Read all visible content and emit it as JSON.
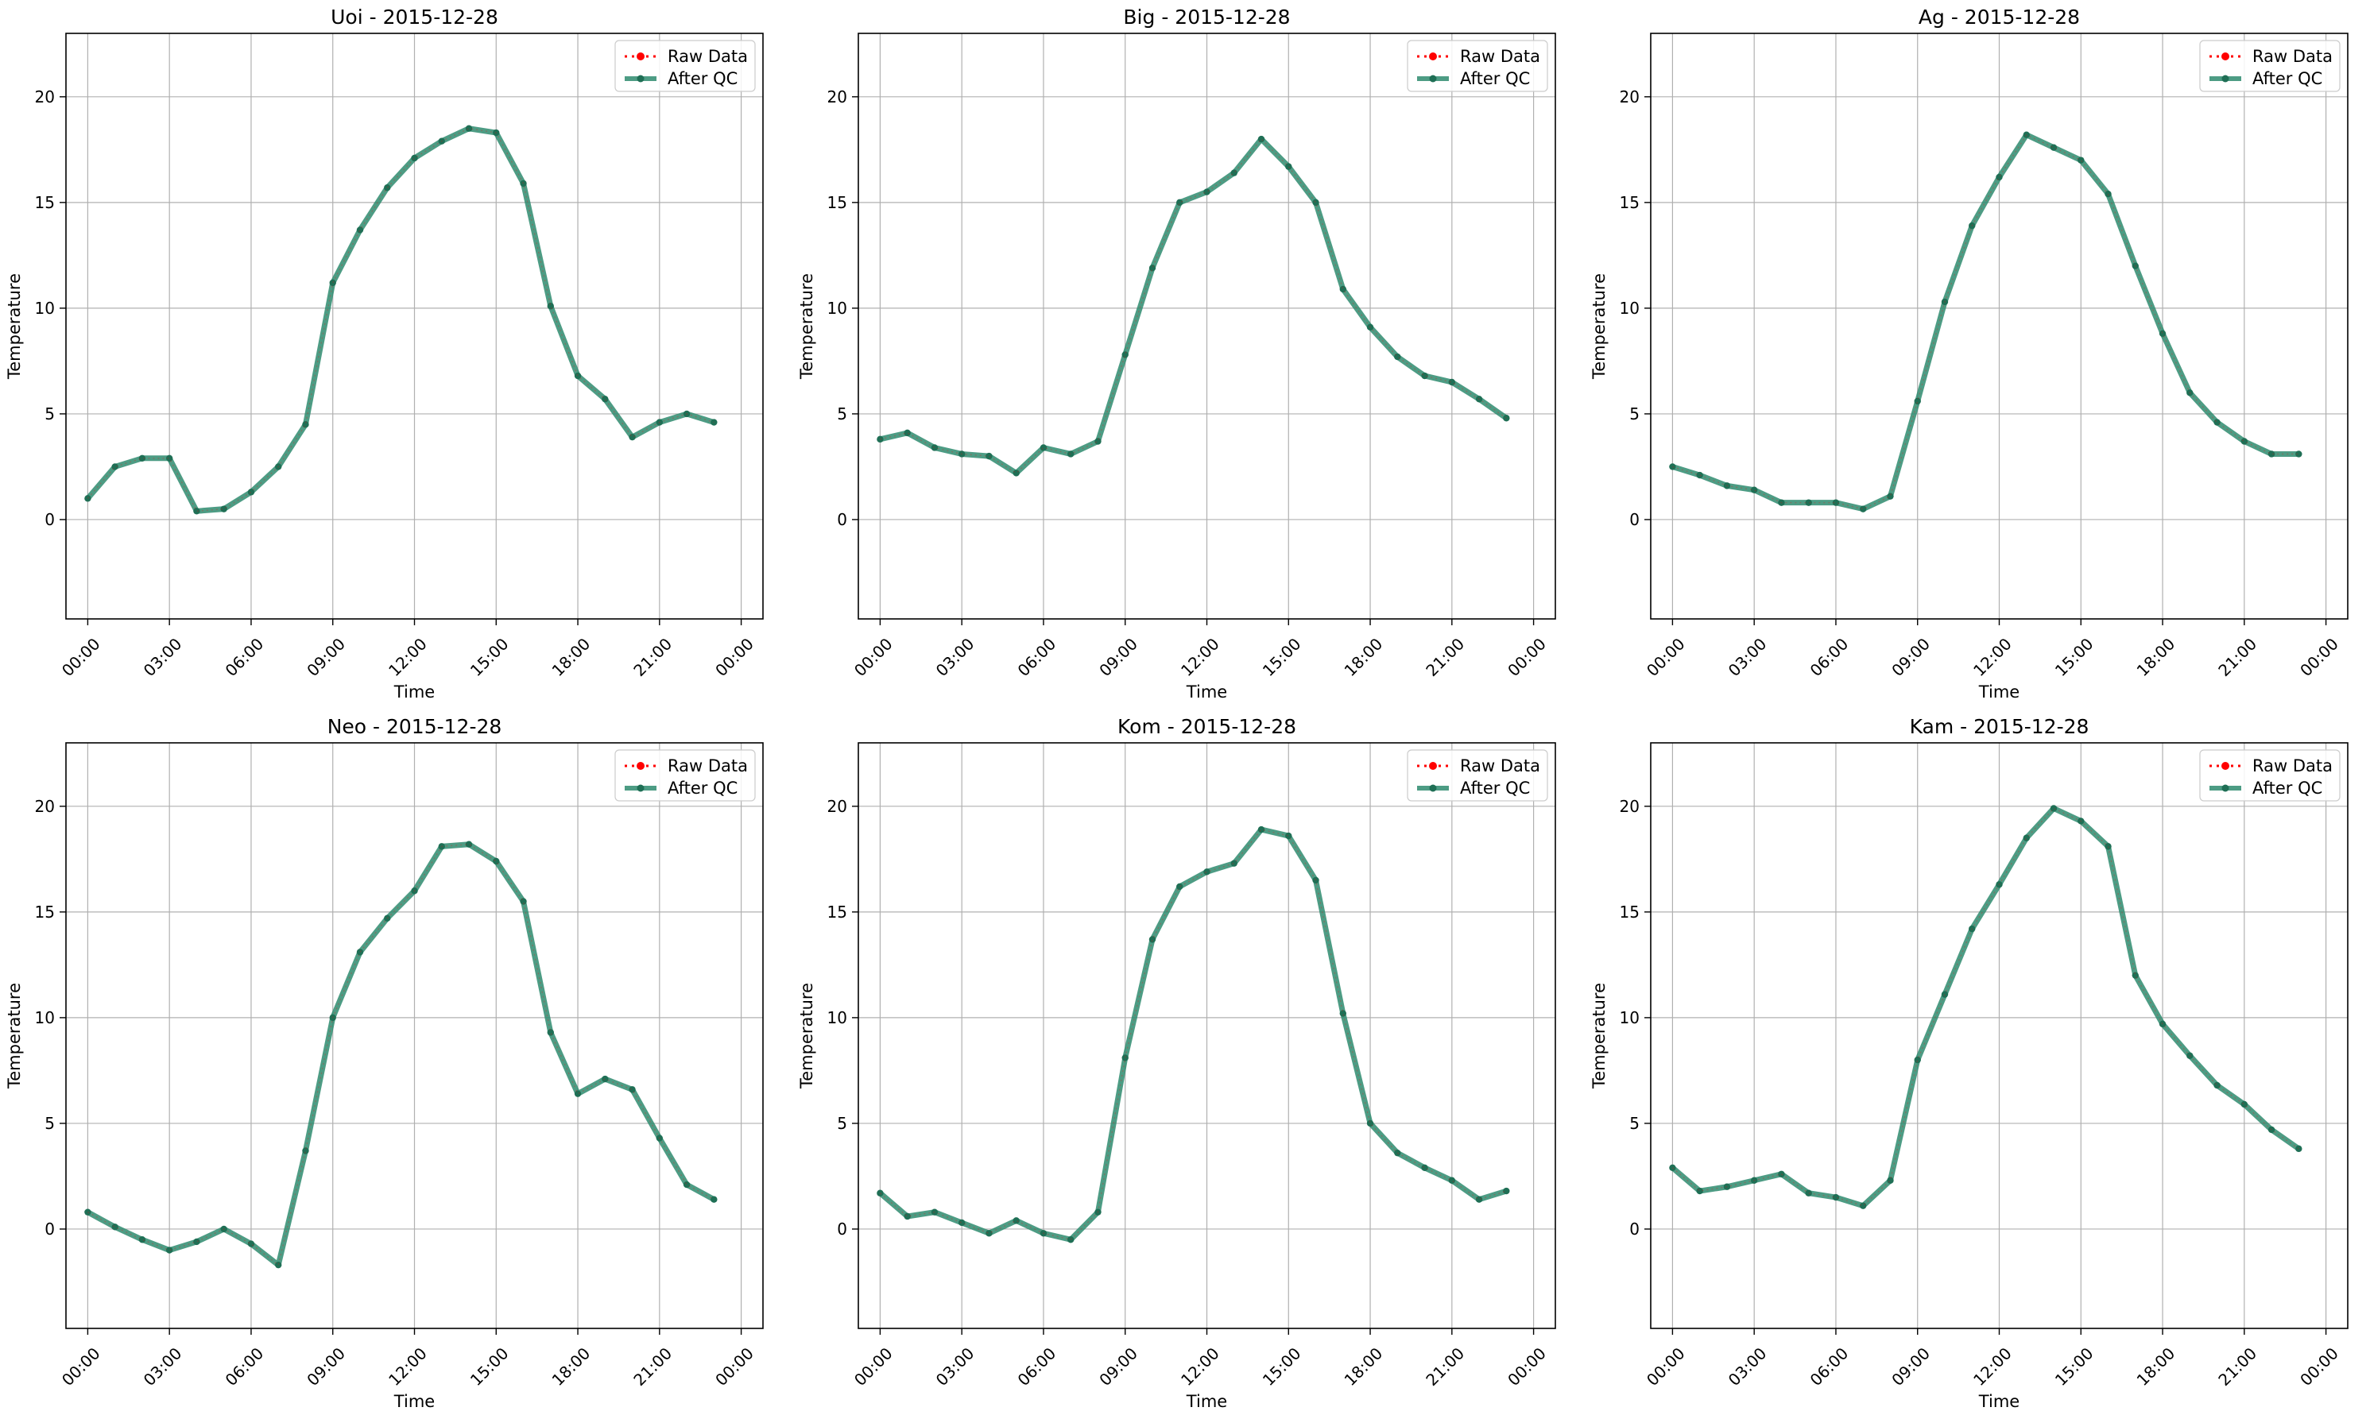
{
  "figure": {
    "legend_labels": [
      "Raw Data",
      "After QC"
    ],
    "colors": {
      "raw": "#ff0000",
      "qc": "#2e8b6e",
      "qc_marker": "#1f6f55",
      "grid": "#b0b0b0"
    }
  },
  "chart_data": [
    {
      "type": "line",
      "title": "Uoi - 2015-12-28",
      "xlabel": "Time",
      "ylabel": "Temperature",
      "x": [
        "00:00",
        "01:00",
        "02:00",
        "03:00",
        "04:00",
        "05:00",
        "06:00",
        "07:00",
        "08:00",
        "09:00",
        "10:00",
        "11:00",
        "12:00",
        "13:00",
        "14:00",
        "15:00",
        "16:00",
        "17:00",
        "18:00",
        "19:00",
        "20:00",
        "21:00",
        "22:00",
        "23:00"
      ],
      "x_ticks": [
        "00:00",
        "03:00",
        "06:00",
        "09:00",
        "12:00",
        "15:00",
        "18:00",
        "21:00",
        "00:00"
      ],
      "y_ticks": [
        0,
        5,
        10,
        15,
        20
      ],
      "ylim": [
        -4.7,
        23
      ],
      "grid": true,
      "legend": "top-right",
      "series": [
        {
          "name": "Raw Data",
          "values": [
            1.0,
            2.5,
            2.9,
            2.9,
            0.4,
            0.5,
            1.3,
            2.5,
            4.5,
            11.2,
            13.7,
            15.7,
            17.1,
            17.9,
            18.5,
            18.3,
            15.9,
            10.1,
            6.8,
            5.7,
            3.9,
            4.6,
            5.0,
            4.6
          ]
        },
        {
          "name": "After QC",
          "values": [
            1.0,
            2.5,
            2.9,
            2.9,
            0.4,
            0.5,
            1.3,
            2.5,
            4.5,
            11.2,
            13.7,
            15.7,
            17.1,
            17.9,
            18.5,
            18.3,
            15.9,
            10.1,
            6.8,
            5.7,
            3.9,
            4.6,
            5.0,
            4.6
          ]
        }
      ]
    },
    {
      "type": "line",
      "title": "Big - 2015-12-28",
      "xlabel": "Time",
      "ylabel": "Temperature",
      "x": [
        "00:00",
        "01:00",
        "02:00",
        "03:00",
        "04:00",
        "05:00",
        "06:00",
        "07:00",
        "08:00",
        "09:00",
        "10:00",
        "11:00",
        "12:00",
        "13:00",
        "14:00",
        "15:00",
        "16:00",
        "17:00",
        "18:00",
        "19:00",
        "20:00",
        "21:00",
        "22:00",
        "23:00"
      ],
      "x_ticks": [
        "00:00",
        "03:00",
        "06:00",
        "09:00",
        "12:00",
        "15:00",
        "18:00",
        "21:00",
        "00:00"
      ],
      "y_ticks": [
        0,
        5,
        10,
        15,
        20
      ],
      "ylim": [
        -4.7,
        23
      ],
      "grid": true,
      "legend": "top-right",
      "series": [
        {
          "name": "Raw Data",
          "values": [
            3.8,
            4.1,
            3.4,
            3.1,
            3.0,
            2.2,
            3.4,
            3.1,
            3.7,
            7.8,
            11.9,
            15.0,
            15.5,
            16.4,
            18.0,
            16.7,
            15.0,
            10.9,
            9.1,
            7.7,
            6.8,
            6.5,
            5.7,
            4.8
          ]
        },
        {
          "name": "After QC",
          "values": [
            3.8,
            4.1,
            3.4,
            3.1,
            3.0,
            2.2,
            3.4,
            3.1,
            3.7,
            7.8,
            11.9,
            15.0,
            15.5,
            16.4,
            18.0,
            16.7,
            15.0,
            10.9,
            9.1,
            7.7,
            6.8,
            6.5,
            5.7,
            4.8
          ]
        }
      ]
    },
    {
      "type": "line",
      "title": "Ag - 2015-12-28",
      "xlabel": "Time",
      "ylabel": "Temperature",
      "x": [
        "00:00",
        "01:00",
        "02:00",
        "03:00",
        "04:00",
        "05:00",
        "06:00",
        "07:00",
        "08:00",
        "09:00",
        "10:00",
        "11:00",
        "12:00",
        "13:00",
        "14:00",
        "15:00",
        "16:00",
        "17:00",
        "18:00",
        "19:00",
        "20:00",
        "21:00",
        "22:00",
        "23:00"
      ],
      "x_ticks": [
        "00:00",
        "03:00",
        "06:00",
        "09:00",
        "12:00",
        "15:00",
        "18:00",
        "21:00",
        "00:00"
      ],
      "y_ticks": [
        0,
        5,
        10,
        15,
        20
      ],
      "ylim": [
        -4.7,
        23
      ],
      "grid": true,
      "legend": "top-right",
      "series": [
        {
          "name": "Raw Data",
          "values": [
            2.5,
            2.1,
            1.6,
            1.4,
            0.8,
            0.8,
            0.8,
            0.5,
            1.1,
            5.6,
            10.3,
            13.9,
            16.2,
            18.2,
            17.6,
            17.0,
            15.4,
            12.0,
            8.8,
            6.0,
            4.6,
            3.7,
            3.1,
            3.1
          ]
        },
        {
          "name": "After QC",
          "values": [
            2.5,
            2.1,
            1.6,
            1.4,
            0.8,
            0.8,
            0.8,
            0.5,
            1.1,
            5.6,
            10.3,
            13.9,
            16.2,
            18.2,
            17.6,
            17.0,
            15.4,
            12.0,
            8.8,
            6.0,
            4.6,
            3.7,
            3.1,
            3.1
          ]
        }
      ]
    },
    {
      "type": "line",
      "title": "Neo - 2015-12-28",
      "xlabel": "Time",
      "ylabel": "Temperature",
      "x": [
        "00:00",
        "01:00",
        "02:00",
        "03:00",
        "04:00",
        "05:00",
        "06:00",
        "07:00",
        "08:00",
        "09:00",
        "10:00",
        "11:00",
        "12:00",
        "13:00",
        "14:00",
        "15:00",
        "16:00",
        "17:00",
        "18:00",
        "19:00",
        "20:00",
        "21:00",
        "22:00",
        "23:00"
      ],
      "x_ticks": [
        "00:00",
        "03:00",
        "06:00",
        "09:00",
        "12:00",
        "15:00",
        "18:00",
        "21:00",
        "00:00"
      ],
      "y_ticks": [
        0,
        5,
        10,
        15,
        20
      ],
      "ylim": [
        -4.7,
        23
      ],
      "grid": true,
      "legend": "top-right",
      "series": [
        {
          "name": "Raw Data",
          "values": [
            0.8,
            0.1,
            -0.5,
            -1.0,
            -0.6,
            0.0,
            -0.7,
            -1.7,
            3.7,
            10.0,
            13.1,
            14.7,
            16.0,
            18.1,
            18.2,
            17.4,
            15.5,
            9.3,
            6.4,
            7.1,
            6.6,
            4.3,
            2.1,
            1.4
          ]
        },
        {
          "name": "After QC",
          "values": [
            0.8,
            0.1,
            -0.5,
            -1.0,
            -0.6,
            0.0,
            -0.7,
            -1.7,
            3.7,
            10.0,
            13.1,
            14.7,
            16.0,
            18.1,
            18.2,
            17.4,
            15.5,
            9.3,
            6.4,
            7.1,
            6.6,
            4.3,
            2.1,
            1.4
          ]
        }
      ]
    },
    {
      "type": "line",
      "title": "Kom - 2015-12-28",
      "xlabel": "Time",
      "ylabel": "Temperature",
      "x": [
        "00:00",
        "01:00",
        "02:00",
        "03:00",
        "04:00",
        "05:00",
        "06:00",
        "07:00",
        "08:00",
        "09:00",
        "10:00",
        "11:00",
        "12:00",
        "13:00",
        "14:00",
        "15:00",
        "16:00",
        "17:00",
        "18:00",
        "19:00",
        "20:00",
        "21:00",
        "22:00",
        "23:00"
      ],
      "x_ticks": [
        "00:00",
        "03:00",
        "06:00",
        "09:00",
        "12:00",
        "15:00",
        "18:00",
        "21:00",
        "00:00"
      ],
      "y_ticks": [
        0,
        5,
        10,
        15,
        20
      ],
      "ylim": [
        -4.7,
        23
      ],
      "grid": true,
      "legend": "top-right",
      "series": [
        {
          "name": "Raw Data",
          "values": [
            1.7,
            0.6,
            0.8,
            0.3,
            -0.2,
            0.4,
            -0.2,
            -0.5,
            0.8,
            8.1,
            13.7,
            16.2,
            16.9,
            17.3,
            18.9,
            18.6,
            16.5,
            10.2,
            5.0,
            3.6,
            2.9,
            2.3,
            1.4,
            1.8
          ]
        },
        {
          "name": "After QC",
          "values": [
            1.7,
            0.6,
            0.8,
            0.3,
            -0.2,
            0.4,
            -0.2,
            -0.5,
            0.8,
            8.1,
            13.7,
            16.2,
            16.9,
            17.3,
            18.9,
            18.6,
            16.5,
            10.2,
            5.0,
            3.6,
            2.9,
            2.3,
            1.4,
            1.8
          ]
        }
      ]
    },
    {
      "type": "line",
      "title": "Kam - 2015-12-28",
      "xlabel": "Time",
      "ylabel": "Temperature",
      "x": [
        "00:00",
        "01:00",
        "02:00",
        "03:00",
        "04:00",
        "05:00",
        "06:00",
        "07:00",
        "08:00",
        "09:00",
        "10:00",
        "11:00",
        "12:00",
        "13:00",
        "14:00",
        "15:00",
        "16:00",
        "17:00",
        "18:00",
        "19:00",
        "20:00",
        "21:00",
        "22:00",
        "23:00"
      ],
      "x_ticks": [
        "00:00",
        "03:00",
        "06:00",
        "09:00",
        "12:00",
        "15:00",
        "18:00",
        "21:00",
        "00:00"
      ],
      "y_ticks": [
        0,
        5,
        10,
        15,
        20
      ],
      "ylim": [
        -4.7,
        23
      ],
      "grid": true,
      "legend": "top-right",
      "series": [
        {
          "name": "Raw Data",
          "values": [
            2.9,
            1.8,
            2.0,
            2.3,
            2.6,
            1.7,
            1.5,
            1.1,
            2.3,
            8.0,
            11.1,
            14.2,
            16.3,
            18.5,
            19.9,
            19.3,
            18.1,
            12.0,
            9.7,
            8.2,
            6.8,
            5.9,
            4.7,
            3.8
          ]
        },
        {
          "name": "After QC",
          "values": [
            2.9,
            1.8,
            2.0,
            2.3,
            2.6,
            1.7,
            1.5,
            1.1,
            2.3,
            8.0,
            11.1,
            14.2,
            16.3,
            18.5,
            19.9,
            19.3,
            18.1,
            12.0,
            9.7,
            8.2,
            6.8,
            5.9,
            4.7,
            3.8
          ]
        }
      ]
    }
  ]
}
